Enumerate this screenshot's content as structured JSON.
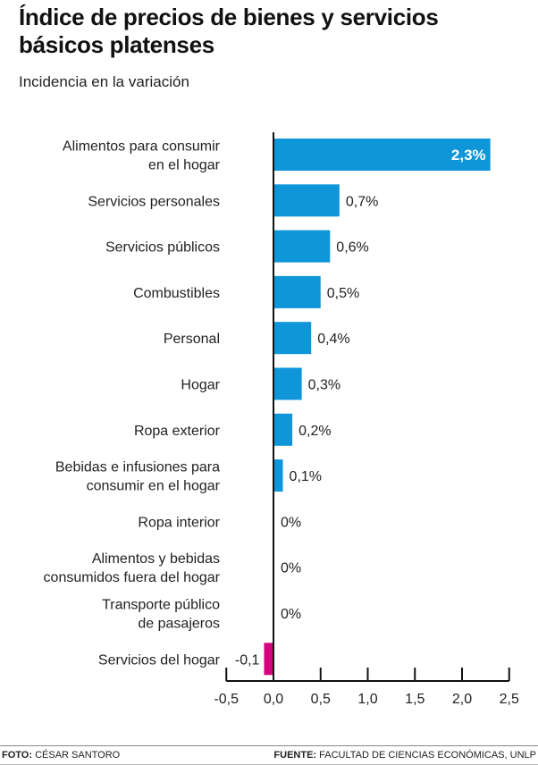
{
  "title": "Índice de precios de bienes y servicios básicos platenses",
  "subtitle": "Incidencia en la variación",
  "footer": {
    "photo_label": "FOTO:",
    "photo_value": "CÉSAR SANTORO",
    "source_label": "FUENTE:",
    "source_value": "FACULTAD DE CIENCIAS ECONÓMICAS, UNLP"
  },
  "colors": {
    "positive": "#0f96d9",
    "negative": "#d4067f",
    "axis": "#111111"
  },
  "chart_data": {
    "type": "bar",
    "orientation": "horizontal",
    "title": "Índice de precios de bienes y servicios básicos platenses",
    "subtitle": "Incidencia en la variación",
    "xlabel": "",
    "ylabel": "",
    "xlim": [
      -0.5,
      2.5
    ],
    "xticks": [
      -0.5,
      0.0,
      0.5,
      1.0,
      1.5,
      2.0,
      2.5
    ],
    "xtick_labels": [
      "-0,5",
      "0,0",
      "0,5",
      "1,0",
      "1,5",
      "2,0",
      "2,5"
    ],
    "grid": false,
    "categories": [
      [
        "Alimentos para consumir",
        "en el hogar"
      ],
      [
        "Servicios personales"
      ],
      [
        "Servicios públicos"
      ],
      [
        "Combustibles"
      ],
      [
        "Personal"
      ],
      [
        "Hogar"
      ],
      [
        "Ropa exterior"
      ],
      [
        "Bebidas e infusiones para",
        "consumir en el hogar"
      ],
      [
        "Ropa interior"
      ],
      [
        "Alimentos y bebidas",
        "consumidos fuera del hogar"
      ],
      [
        "Transporte público",
        "de pasajeros"
      ],
      [
        "Servicios del hogar"
      ]
    ],
    "values": [
      2.3,
      0.7,
      0.6,
      0.5,
      0.4,
      0.3,
      0.2,
      0.1,
      0,
      0,
      0,
      -0.1
    ],
    "labels": [
      "2,3%",
      "0,7%",
      "0,6%",
      "0,5%",
      "0,4%",
      "0,3%",
      "0,2%",
      "0,1%",
      "0%",
      "0%",
      "0%",
      "-0,1"
    ]
  }
}
